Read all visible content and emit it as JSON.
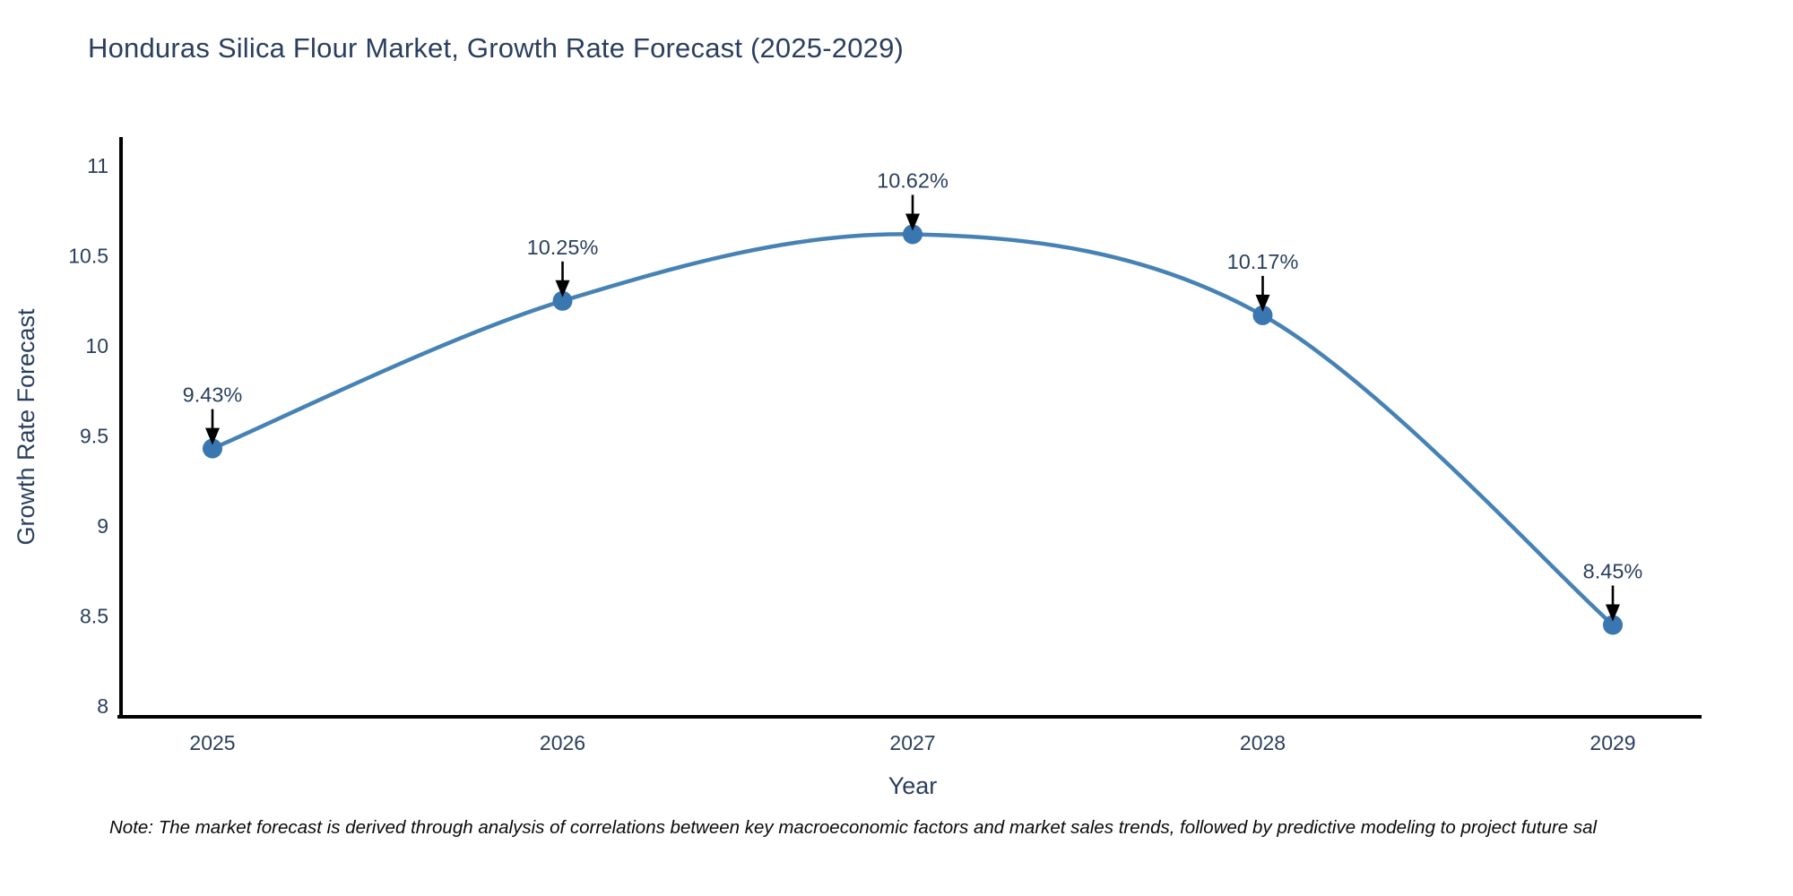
{
  "chart_data": {
    "type": "line",
    "title": "Honduras Silica Flour Market, Growth Rate Forecast (2025-2029)",
    "xlabel": "Year",
    "ylabel": "Growth Rate Forecast",
    "categories": [
      "2025",
      "2026",
      "2027",
      "2028",
      "2029"
    ],
    "series": [
      {
        "name": "Growth Rate Forecast",
        "values": [
          9.43,
          10.25,
          10.62,
          10.17,
          8.45
        ],
        "point_labels": [
          "9.43%",
          "10.25%",
          "10.62%",
          "10.17%",
          "8.45%"
        ]
      }
    ],
    "line_shape": "spline",
    "grid": false,
    "legend_position": "none",
    "ylim": [
      7.94,
      11.16
    ],
    "yticks": [
      {
        "value": 11,
        "label": "11"
      },
      {
        "value": 10.5,
        "label": "10.5"
      },
      {
        "value": 10,
        "label": "10"
      },
      {
        "value": 9.5,
        "label": "9.5"
      },
      {
        "value": 9,
        "label": "9"
      },
      {
        "value": 8.5,
        "label": "8.5"
      },
      {
        "value": 8,
        "label": "8"
      }
    ],
    "note": "Note: The market forecast is derived through analysis of correlations between key macroeconomic factors and market sales trends, followed by predictive modeling to project future sal",
    "colors": {
      "line": "#4682b4",
      "marker": "#3a76b0",
      "axis": "#000000",
      "tick_text": "#2a3f5f",
      "title_text": "#2a3f5f",
      "annotation_text": "#2a3f5f",
      "annotation_arrow": "#000000",
      "note_text": "#0a0a0a",
      "background": "#ffffff"
    }
  }
}
